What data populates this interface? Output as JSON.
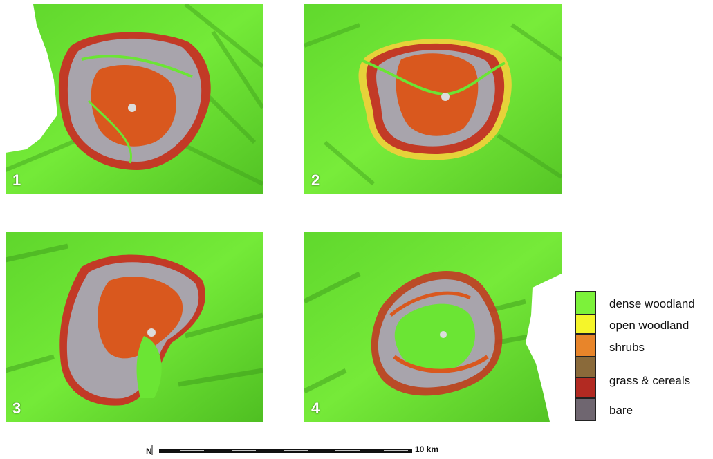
{
  "panels": [
    {
      "label": "1"
    },
    {
      "label": "2"
    },
    {
      "label": "3"
    },
    {
      "label": "4"
    }
  ],
  "legend": {
    "items": [
      {
        "label": "dense woodland",
        "color": "#7cf23a"
      },
      {
        "label": "open woodland",
        "color": "#f5f52a"
      },
      {
        "label": "shrubs",
        "color": "#e8852a"
      },
      {
        "label": "grass & cereals",
        "color": "#8a6a3a"
      },
      {
        "label": "bare",
        "color": "#6f6670"
      }
    ],
    "extra_color_red": "#b22a22"
  },
  "scale": {
    "label": "10 km",
    "north_symbol": "N"
  },
  "colors": {
    "forest": "#6be534",
    "forest_dark": "#3e9c1e",
    "orange_core": "#d9581e",
    "gray_bare": "#a8a4ac",
    "red_edge": "#c23a26",
    "yellow_edge": "#e6d23a"
  }
}
